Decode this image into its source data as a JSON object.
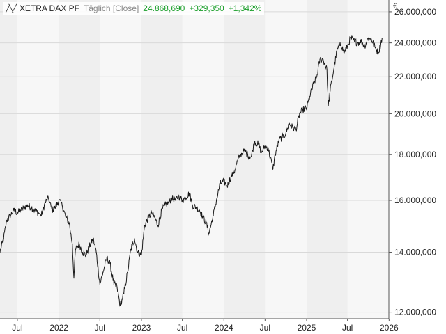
{
  "legend": {
    "symbol_icon": "line-chart-icon",
    "name": "XETRA DAX PF",
    "interval": "Täglich [Close]",
    "close": "24.868,690",
    "change": "+329,350",
    "change_pct": "+1,342%"
  },
  "colors": {
    "line": "#1a1a1a",
    "positive": "#1a9e2a",
    "band_dark": "#efefef",
    "band_light": "#f7f7f7",
    "grid": "#d9d9d9"
  },
  "chart_data": {
    "type": "line",
    "title": "",
    "xlabel": "",
    "ylabel": "€",
    "y_scale": "log",
    "ylim": [
      11800,
      26800
    ],
    "xlim": [
      "2021-04-15",
      "2025-12-31"
    ],
    "grid": true,
    "y_ticks": [
      12000,
      14000,
      16000,
      18000,
      20000,
      22000,
      24000,
      26000
    ],
    "y_tick_labels": [
      "12.000,000",
      "14.000,000",
      "16.000,000",
      "18.000,000",
      "20.000,000",
      "22.000,000",
      "24.000,000",
      "26.000,000"
    ],
    "x_ticks": [
      "2021-07-01",
      "2022-01-01",
      "2022-07-01",
      "2023-01-01",
      "2023-07-01",
      "2024-01-01",
      "2024-07-01",
      "2025-01-01",
      "2025-07-01",
      "2026-01-01"
    ],
    "x_tick_labels": [
      "Jul",
      "2022",
      "Jul",
      "2023",
      "Jul",
      "2024",
      "Jul",
      "2025",
      "Jul",
      "2026"
    ],
    "series": [
      {
        "name": "XETRA DAX PF",
        "x": [
          "2021-04-15",
          "2021-05-01",
          "2021-05-15",
          "2021-06-01",
          "2021-06-15",
          "2021-07-01",
          "2021-07-15",
          "2021-08-01",
          "2021-08-15",
          "2021-09-01",
          "2021-09-15",
          "2021-10-01",
          "2021-10-15",
          "2021-11-01",
          "2021-11-15",
          "2021-12-01",
          "2021-12-15",
          "2022-01-01",
          "2022-01-15",
          "2022-02-01",
          "2022-02-15",
          "2022-03-01",
          "2022-03-08",
          "2022-03-15",
          "2022-04-01",
          "2022-04-15",
          "2022-05-01",
          "2022-05-15",
          "2022-06-01",
          "2022-06-15",
          "2022-07-01",
          "2022-07-15",
          "2022-08-01",
          "2022-08-15",
          "2022-09-01",
          "2022-09-15",
          "2022-09-29",
          "2022-10-15",
          "2022-11-01",
          "2022-11-15",
          "2022-12-01",
          "2022-12-15",
          "2023-01-01",
          "2023-01-15",
          "2023-02-01",
          "2023-02-15",
          "2023-03-01",
          "2023-03-15",
          "2023-04-01",
          "2023-04-15",
          "2023-05-01",
          "2023-05-15",
          "2023-06-01",
          "2023-06-15",
          "2023-07-01",
          "2023-07-15",
          "2023-08-01",
          "2023-08-15",
          "2023-09-01",
          "2023-09-15",
          "2023-10-01",
          "2023-10-15",
          "2023-10-27",
          "2023-11-15",
          "2023-12-01",
          "2023-12-15",
          "2024-01-01",
          "2024-01-15",
          "2024-02-01",
          "2024-02-15",
          "2024-03-01",
          "2024-03-15",
          "2024-04-01",
          "2024-04-15",
          "2024-05-01",
          "2024-05-15",
          "2024-06-01",
          "2024-06-15",
          "2024-07-01",
          "2024-07-15",
          "2024-08-05",
          "2024-08-15",
          "2024-09-01",
          "2024-09-15",
          "2024-10-01",
          "2024-10-15",
          "2024-11-01",
          "2024-11-15",
          "2024-12-01",
          "2024-12-15",
          "2025-01-01",
          "2025-01-15",
          "2025-02-01",
          "2025-02-15",
          "2025-03-01",
          "2025-03-15",
          "2025-04-01",
          "2025-04-07",
          "2025-04-15",
          "2025-05-01",
          "2025-05-15",
          "2025-06-01",
          "2025-06-15",
          "2025-07-01",
          "2025-07-15",
          "2025-08-01",
          "2025-08-15",
          "2025-09-01",
          "2025-09-15",
          "2025-10-01",
          "2025-10-15",
          "2025-11-01",
          "2025-11-15",
          "2025-12-01"
        ],
        "y": [
          14000,
          14500,
          15200,
          15400,
          15600,
          15500,
          15600,
          15700,
          15800,
          15700,
          15600,
          15500,
          15400,
          15900,
          16100,
          15600,
          15700,
          16000,
          15800,
          15300,
          15100,
          14300,
          13100,
          14100,
          14300,
          14000,
          13900,
          14200,
          14500,
          14000,
          12900,
          13300,
          13800,
          13600,
          12900,
          12800,
          12200,
          12600,
          13300,
          14100,
          14500,
          14000,
          13900,
          15000,
          15300,
          15500,
          15300,
          15000,
          15600,
          15800,
          15900,
          16100,
          16000,
          16200,
          16000,
          16100,
          16300,
          15800,
          15700,
          15600,
          15300,
          15100,
          14700,
          15400,
          16100,
          16700,
          16800,
          16600,
          17000,
          17200,
          17700,
          18000,
          18200,
          18000,
          17900,
          18600,
          18500,
          18100,
          18400,
          18300,
          17350,
          18000,
          18700,
          18800,
          19000,
          19500,
          19300,
          19200,
          20000,
          20200,
          20300,
          20900,
          21600,
          22000,
          23000,
          23000,
          22400,
          20400,
          21200,
          22400,
          23500,
          24000,
          23400,
          23800,
          24300,
          24100,
          24000,
          24100,
          23800,
          24300,
          24200,
          23700,
          23400,
          24300
        ]
      }
    ]
  }
}
